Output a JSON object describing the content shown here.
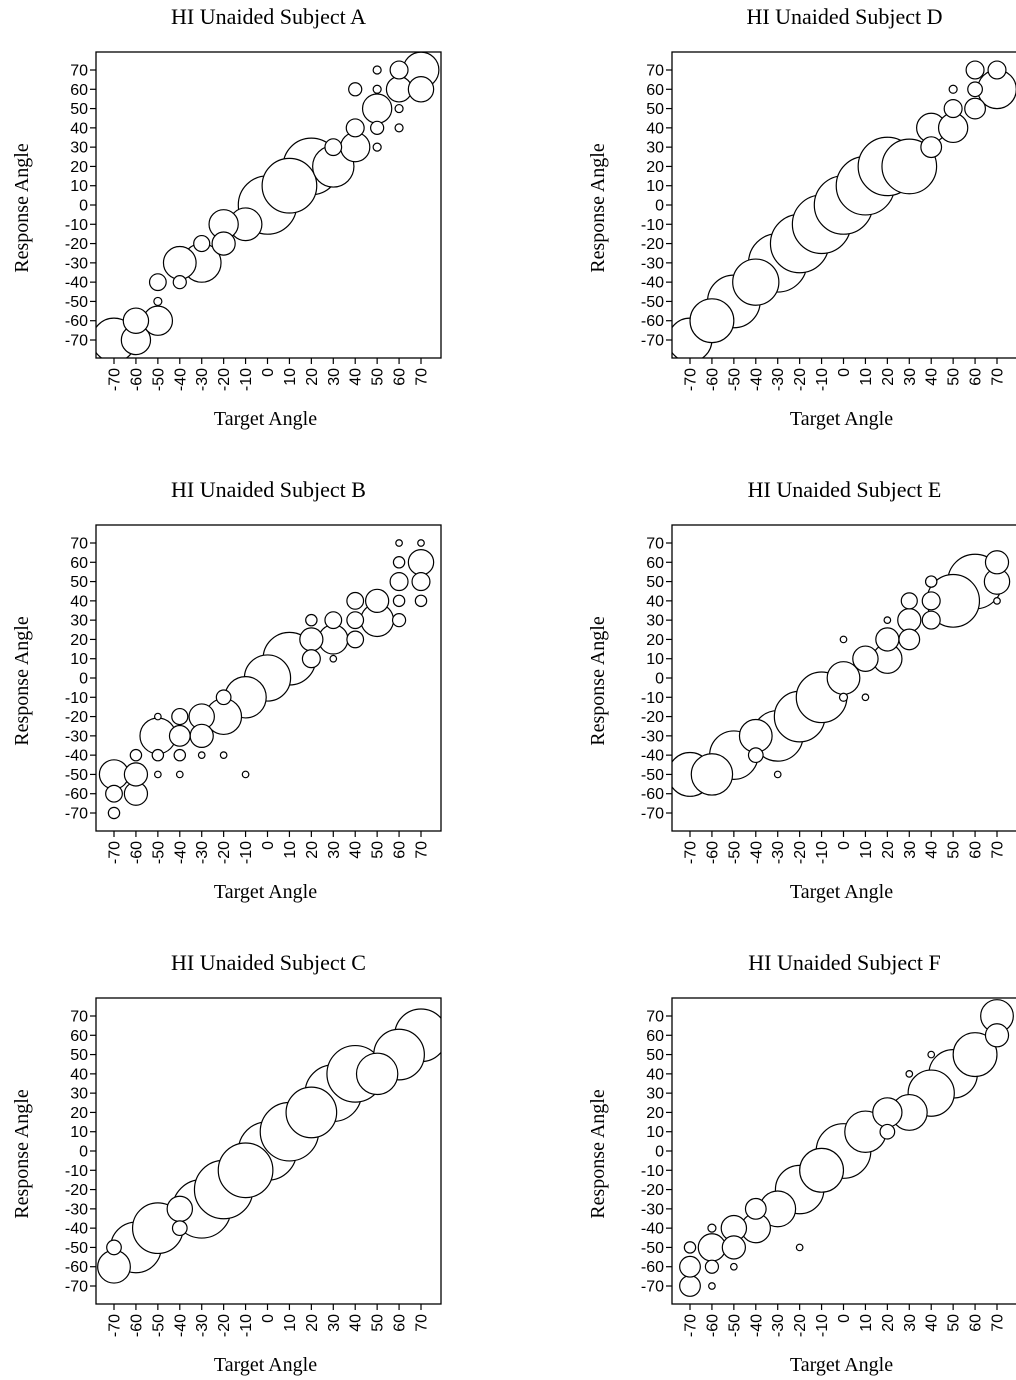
{
  "figure": {
    "panels": [
      {
        "id": "A",
        "title": "HI Unaided Subject A"
      },
      {
        "id": "D",
        "title": "HI Unaided Subject D"
      },
      {
        "id": "B",
        "title": "HI Unaided Subject B"
      },
      {
        "id": "E",
        "title": "HI Unaided Subject E"
      },
      {
        "id": "C",
        "title": "HI Unaided Subject C"
      },
      {
        "id": "F",
        "title": "HI Unaided Subject F"
      }
    ]
  },
  "chart_data": [
    {
      "type": "scatter",
      "bubble": true,
      "title": "HI Unaided Subject A",
      "xlabel": "Target Angle",
      "ylabel": "Response Angle",
      "xticks": [
        -70,
        -60,
        -50,
        -40,
        -30,
        -20,
        -10,
        0,
        10,
        20,
        30,
        40,
        50,
        60,
        70
      ],
      "yticks": [
        70,
        60,
        50,
        40,
        30,
        20,
        10,
        0,
        -10,
        -20,
        -30,
        -40,
        -50,
        -60,
        -70
      ],
      "xlim": [
        -70,
        70
      ],
      "ylim": [
        -70,
        70
      ],
      "points": [
        {
          "x": -70,
          "y": -70,
          "size": 9
        },
        {
          "x": -60,
          "y": -70,
          "size": 4
        },
        {
          "x": -60,
          "y": -60,
          "size": 3
        },
        {
          "x": -50,
          "y": -60,
          "size": 4
        },
        {
          "x": -50,
          "y": -50,
          "size": 0.3
        },
        {
          "x": -50,
          "y": -40,
          "size": 1.3
        },
        {
          "x": -40,
          "y": -40,
          "size": 0.8
        },
        {
          "x": -40,
          "y": -30,
          "size": 5
        },
        {
          "x": -30,
          "y": -30,
          "size": 7
        },
        {
          "x": -30,
          "y": -20,
          "size": 1.2
        },
        {
          "x": -20,
          "y": -20,
          "size": 2.5
        },
        {
          "x": -20,
          "y": -10,
          "size": 4
        },
        {
          "x": -10,
          "y": -10,
          "size": 5
        },
        {
          "x": 0,
          "y": 0,
          "size": 16
        },
        {
          "x": 10,
          "y": 10,
          "size": 14
        },
        {
          "x": 20,
          "y": 20,
          "size": 15
        },
        {
          "x": 30,
          "y": 20,
          "size": 8
        },
        {
          "x": 30,
          "y": 30,
          "size": 1.3
        },
        {
          "x": 40,
          "y": 30,
          "size": 4
        },
        {
          "x": 40,
          "y": 40,
          "size": 1.5
        },
        {
          "x": 40,
          "y": 60,
          "size": 0.8
        },
        {
          "x": 50,
          "y": 30,
          "size": 0.3
        },
        {
          "x": 50,
          "y": 40,
          "size": 0.8
        },
        {
          "x": 50,
          "y": 50,
          "size": 4
        },
        {
          "x": 50,
          "y": 60,
          "size": 0.3
        },
        {
          "x": 50,
          "y": 70,
          "size": 0.3
        },
        {
          "x": 60,
          "y": 40,
          "size": 0.3
        },
        {
          "x": 60,
          "y": 50,
          "size": 0.3
        },
        {
          "x": 60,
          "y": 60,
          "size": 3
        },
        {
          "x": 60,
          "y": 70,
          "size": 1.5
        },
        {
          "x": 70,
          "y": 60,
          "size": 3
        },
        {
          "x": 70,
          "y": 70,
          "size": 6
        }
      ]
    },
    {
      "type": "scatter",
      "bubble": true,
      "title": "HI Unaided Subject D",
      "xlabel": "Target Angle",
      "ylabel": "Response Angle",
      "xticks": [
        -70,
        -60,
        -50,
        -40,
        -30,
        -20,
        -10,
        0,
        10,
        20,
        30,
        40,
        50,
        60,
        70
      ],
      "yticks": [
        70,
        60,
        50,
        40,
        30,
        20,
        10,
        0,
        -10,
        -20,
        -30,
        -40,
        -50,
        -60,
        -70
      ],
      "xlim": [
        -70,
        70
      ],
      "ylim": [
        -70,
        70
      ],
      "points": [
        {
          "x": -70,
          "y": -70,
          "size": 9
        },
        {
          "x": -60,
          "y": -60,
          "size": 9
        },
        {
          "x": -50,
          "y": -50,
          "size": 13
        },
        {
          "x": -40,
          "y": -40,
          "size": 10
        },
        {
          "x": -30,
          "y": -30,
          "size": 16
        },
        {
          "x": -20,
          "y": -20,
          "size": 16
        },
        {
          "x": -10,
          "y": -10,
          "size": 16
        },
        {
          "x": 0,
          "y": 0,
          "size": 16
        },
        {
          "x": 10,
          "y": 10,
          "size": 16
        },
        {
          "x": 20,
          "y": 20,
          "size": 16
        },
        {
          "x": 30,
          "y": 20,
          "size": 14
        },
        {
          "x": 40,
          "y": 30,
          "size": 2
        },
        {
          "x": 40,
          "y": 40,
          "size": 4
        },
        {
          "x": 50,
          "y": 40,
          "size": 4
        },
        {
          "x": 50,
          "y": 50,
          "size": 1.5
        },
        {
          "x": 50,
          "y": 60,
          "size": 0.3
        },
        {
          "x": 60,
          "y": 50,
          "size": 2
        },
        {
          "x": 60,
          "y": 60,
          "size": 1
        },
        {
          "x": 60,
          "y": 70,
          "size": 1.5
        },
        {
          "x": 70,
          "y": 60,
          "size": 7
        },
        {
          "x": 70,
          "y": 70,
          "size": 1.5
        }
      ]
    },
    {
      "type": "scatter",
      "bubble": true,
      "title": "HI Unaided Subject B",
      "xlabel": "Target Angle",
      "ylabel": "Response Angle",
      "xticks": [
        -70,
        -60,
        -50,
        -40,
        -30,
        -20,
        -10,
        0,
        10,
        20,
        30,
        40,
        50,
        60,
        70
      ],
      "yticks": [
        70,
        60,
        50,
        40,
        30,
        20,
        10,
        0,
        -10,
        -20,
        -30,
        -40,
        -50,
        -60,
        -70
      ],
      "xlim": [
        -70,
        70
      ],
      "ylim": [
        -70,
        70
      ],
      "points": [
        {
          "x": -70,
          "y": -70,
          "size": 0.6
        },
        {
          "x": -70,
          "y": -60,
          "size": 1.3
        },
        {
          "x": -70,
          "y": -50,
          "size": 4
        },
        {
          "x": -60,
          "y": -60,
          "size": 2.5
        },
        {
          "x": -60,
          "y": -50,
          "size": 2.5
        },
        {
          "x": -60,
          "y": -40,
          "size": 0.6
        },
        {
          "x": -50,
          "y": -50,
          "size": 0.2
        },
        {
          "x": -50,
          "y": -40,
          "size": 0.6
        },
        {
          "x": -50,
          "y": -30,
          "size": 6
        },
        {
          "x": -50,
          "y": -20,
          "size": 0.2
        },
        {
          "x": -40,
          "y": -50,
          "size": 0.2
        },
        {
          "x": -40,
          "y": -40,
          "size": 0.6
        },
        {
          "x": -40,
          "y": -30,
          "size": 2
        },
        {
          "x": -40,
          "y": -20,
          "size": 1.2
        },
        {
          "x": -30,
          "y": -40,
          "size": 0.2
        },
        {
          "x": -30,
          "y": -30,
          "size": 2.5
        },
        {
          "x": -30,
          "y": -20,
          "size": 3
        },
        {
          "x": -20,
          "y": -40,
          "size": 0.2
        },
        {
          "x": -20,
          "y": -20,
          "size": 6
        },
        {
          "x": -20,
          "y": -10,
          "size": 1
        },
        {
          "x": -10,
          "y": -50,
          "size": 0.2
        },
        {
          "x": -10,
          "y": -10,
          "size": 8
        },
        {
          "x": 0,
          "y": 0,
          "size": 10
        },
        {
          "x": 10,
          "y": 10,
          "size": 13
        },
        {
          "x": 20,
          "y": 10,
          "size": 1.5
        },
        {
          "x": 20,
          "y": 20,
          "size": 2.5
        },
        {
          "x": 20,
          "y": 30,
          "size": 0.6
        },
        {
          "x": 30,
          "y": 10,
          "size": 0.2
        },
        {
          "x": 30,
          "y": 20,
          "size": 4
        },
        {
          "x": 30,
          "y": 30,
          "size": 1.3
        },
        {
          "x": 40,
          "y": 20,
          "size": 1.3
        },
        {
          "x": 40,
          "y": 30,
          "size": 1.3
        },
        {
          "x": 40,
          "y": 40,
          "size": 1.3
        },
        {
          "x": 50,
          "y": 30,
          "size": 5
        },
        {
          "x": 50,
          "y": 40,
          "size": 2.5
        },
        {
          "x": 60,
          "y": 30,
          "size": 0.8
        },
        {
          "x": 60,
          "y": 40,
          "size": 0.6
        },
        {
          "x": 60,
          "y": 50,
          "size": 1.5
        },
        {
          "x": 60,
          "y": 60,
          "size": 0.6
        },
        {
          "x": 60,
          "y": 70,
          "size": 0.2
        },
        {
          "x": 70,
          "y": 40,
          "size": 0.6
        },
        {
          "x": 70,
          "y": 50,
          "size": 1.5
        },
        {
          "x": 70,
          "y": 60,
          "size": 3
        },
        {
          "x": 70,
          "y": 70,
          "size": 0.2
        }
      ]
    },
    {
      "type": "scatter",
      "bubble": true,
      "title": "HI Unaided Subject E",
      "xlabel": "Target Angle",
      "ylabel": "Response Angle",
      "xticks": [
        -70,
        -60,
        -50,
        -40,
        -30,
        -20,
        -10,
        0,
        10,
        20,
        30,
        40,
        50,
        60,
        70
      ],
      "yticks": [
        70,
        60,
        50,
        40,
        30,
        20,
        10,
        0,
        -10,
        -20,
        -30,
        -40,
        -50,
        -60,
        -70
      ],
      "xlim": [
        -70,
        70
      ],
      "ylim": [
        -70,
        70
      ],
      "points": [
        {
          "x": -70,
          "y": -50,
          "size": 9
        },
        {
          "x": -60,
          "y": -50,
          "size": 8
        },
        {
          "x": -50,
          "y": -40,
          "size": 11
        },
        {
          "x": -40,
          "y": -40,
          "size": 1
        },
        {
          "x": -40,
          "y": -30,
          "size": 5
        },
        {
          "x": -30,
          "y": -50,
          "size": 0.2
        },
        {
          "x": -30,
          "y": -30,
          "size": 12
        },
        {
          "x": -20,
          "y": -20,
          "size": 12
        },
        {
          "x": -10,
          "y": -10,
          "size": 12
        },
        {
          "x": 0,
          "y": -10,
          "size": 0.3
        },
        {
          "x": 0,
          "y": 0,
          "size": 5
        },
        {
          "x": 0,
          "y": 20,
          "size": 0.2
        },
        {
          "x": 10,
          "y": -10,
          "size": 0.2
        },
        {
          "x": 10,
          "y": 10,
          "size": 3
        },
        {
          "x": 20,
          "y": 10,
          "size": 4
        },
        {
          "x": 20,
          "y": 20,
          "size": 2.5
        },
        {
          "x": 20,
          "y": 30,
          "size": 0.2
        },
        {
          "x": 30,
          "y": 20,
          "size": 2
        },
        {
          "x": 30,
          "y": 30,
          "size": 2.5
        },
        {
          "x": 30,
          "y": 40,
          "size": 1.2
        },
        {
          "x": 40,
          "y": 30,
          "size": 1.5
        },
        {
          "x": 40,
          "y": 40,
          "size": 1.5
        },
        {
          "x": 40,
          "y": 50,
          "size": 0.6
        },
        {
          "x": 50,
          "y": 40,
          "size": 13
        },
        {
          "x": 60,
          "y": 50,
          "size": 14
        },
        {
          "x": 70,
          "y": 40,
          "size": 0.2
        },
        {
          "x": 70,
          "y": 50,
          "size": 3
        },
        {
          "x": 70,
          "y": 60,
          "size": 2.5
        }
      ]
    },
    {
      "type": "scatter",
      "bubble": true,
      "title": "HI Unaided Subject C",
      "xlabel": "Target Angle",
      "ylabel": "Response Angle",
      "xticks": [
        -70,
        -60,
        -50,
        -40,
        -30,
        -20,
        -10,
        0,
        10,
        20,
        30,
        40,
        50,
        60,
        70
      ],
      "yticks": [
        70,
        60,
        50,
        40,
        30,
        20,
        10,
        0,
        -10,
        -20,
        -30,
        -40,
        -50,
        -60,
        -70
      ],
      "xlim": [
        -70,
        70
      ],
      "ylim": [
        -70,
        70
      ],
      "points": [
        {
          "x": -70,
          "y": -60,
          "size": 5
        },
        {
          "x": -70,
          "y": -50,
          "size": 1
        },
        {
          "x": -60,
          "y": -50,
          "size": 12
        },
        {
          "x": -50,
          "y": -40,
          "size": 12
        },
        {
          "x": -40,
          "y": -40,
          "size": 1
        },
        {
          "x": -40,
          "y": -30,
          "size": 3
        },
        {
          "x": -30,
          "y": -30,
          "size": 16
        },
        {
          "x": -20,
          "y": -20,
          "size": 16
        },
        {
          "x": -10,
          "y": -10,
          "size": 14
        },
        {
          "x": 0,
          "y": 0,
          "size": 16
        },
        {
          "x": 10,
          "y": 10,
          "size": 16
        },
        {
          "x": 20,
          "y": 20,
          "size": 12
        },
        {
          "x": 30,
          "y": 30,
          "size": 15
        },
        {
          "x": 40,
          "y": 40,
          "size": 15
        },
        {
          "x": 50,
          "y": 40,
          "size": 8
        },
        {
          "x": 60,
          "y": 50,
          "size": 12
        },
        {
          "x": 70,
          "y": 60,
          "size": 13
        }
      ]
    },
    {
      "type": "scatter",
      "bubble": true,
      "title": "HI Unaided Subject F",
      "xlabel": "Target Angle",
      "ylabel": "Response Angle",
      "xticks": [
        -70,
        -60,
        -50,
        -40,
        -30,
        -20,
        -10,
        0,
        10,
        20,
        30,
        40,
        50,
        60,
        70
      ],
      "yticks": [
        70,
        60,
        50,
        40,
        30,
        20,
        10,
        0,
        -10,
        -20,
        -30,
        -40,
        -50,
        -60,
        -70
      ],
      "xlim": [
        -70,
        70
      ],
      "ylim": [
        -70,
        70
      ],
      "points": [
        {
          "x": -70,
          "y": -70,
          "size": 2
        },
        {
          "x": -70,
          "y": -60,
          "size": 2
        },
        {
          "x": -70,
          "y": -50,
          "size": 0.6
        },
        {
          "x": -60,
          "y": -70,
          "size": 0.2
        },
        {
          "x": -60,
          "y": -60,
          "size": 0.8
        },
        {
          "x": -60,
          "y": -50,
          "size": 3.5
        },
        {
          "x": -60,
          "y": -40,
          "size": 0.3
        },
        {
          "x": -50,
          "y": -60,
          "size": 0.2
        },
        {
          "x": -50,
          "y": -50,
          "size": 2.5
        },
        {
          "x": -50,
          "y": -40,
          "size": 3
        },
        {
          "x": -40,
          "y": -40,
          "size": 4
        },
        {
          "x": -40,
          "y": -30,
          "size": 2
        },
        {
          "x": -30,
          "y": -30,
          "size": 6
        },
        {
          "x": -20,
          "y": -50,
          "size": 0.2
        },
        {
          "x": -20,
          "y": -20,
          "size": 11
        },
        {
          "x": -10,
          "y": -10,
          "size": 9
        },
        {
          "x": 0,
          "y": 0,
          "size": 14
        },
        {
          "x": 10,
          "y": 10,
          "size": 8
        },
        {
          "x": 20,
          "y": 10,
          "size": 1
        },
        {
          "x": 20,
          "y": 20,
          "size": 4
        },
        {
          "x": 30,
          "y": 20,
          "size": 6
        },
        {
          "x": 30,
          "y": 40,
          "size": 0.2
        },
        {
          "x": 40,
          "y": 30,
          "size": 10
        },
        {
          "x": 40,
          "y": 50,
          "size": 0.2
        },
        {
          "x": 50,
          "y": 40,
          "size": 11
        },
        {
          "x": 60,
          "y": 50,
          "size": 9
        },
        {
          "x": 70,
          "y": 60,
          "size": 2.5
        },
        {
          "x": 70,
          "y": 70,
          "size": 5
        }
      ]
    }
  ]
}
